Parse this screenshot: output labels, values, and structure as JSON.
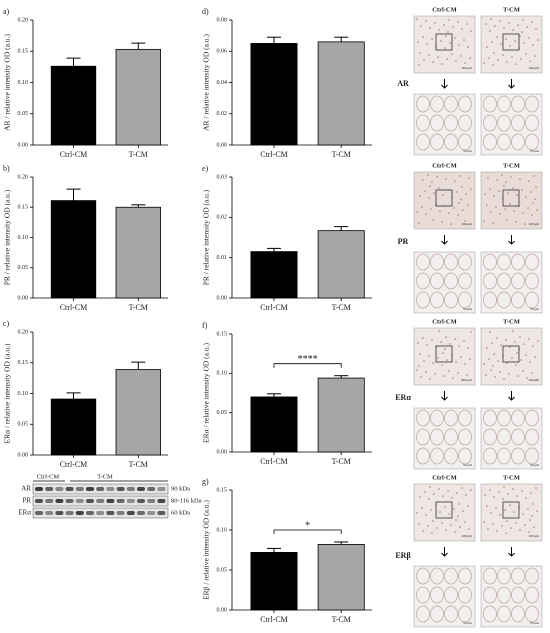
{
  "chart_data": [
    {
      "type": "bar",
      "label": "a)",
      "ylabel": "AR / relative intensity OD (a.u.)",
      "categories": [
        "Ctrl-CM",
        "T-CM"
      ],
      "values": [
        0.126,
        0.153
      ],
      "errors": [
        0.013,
        0.01
      ],
      "colors": [
        "#000000",
        "#a6a6a6"
      ],
      "ylim": [
        0,
        0.2
      ],
      "yticks": [
        {
          "value": 0,
          "label": "0.00"
        },
        {
          "value": 0.05,
          "label": "0.05"
        },
        {
          "value": 0.1,
          "label": "0.10"
        },
        {
          "value": 0.15,
          "label": "0.15"
        },
        {
          "value": 0.2,
          "label": "0.20"
        }
      ]
    },
    {
      "type": "bar",
      "label": "b)",
      "ylabel": "PR / relative intensity OD (a.u.)",
      "categories": [
        "Ctrl-CM",
        "T-CM"
      ],
      "values": [
        0.161,
        0.15
      ],
      "errors": [
        0.019,
        0.004
      ],
      "colors": [
        "#000000",
        "#a6a6a6"
      ],
      "ylim": [
        0,
        0.2
      ],
      "yticks": [
        {
          "value": 0,
          "label": "0.00"
        },
        {
          "value": 0.05,
          "label": "0.05"
        },
        {
          "value": 0.1,
          "label": "0.10"
        },
        {
          "value": 0.15,
          "label": "0.15"
        },
        {
          "value": 0.2,
          "label": "0.20"
        }
      ]
    },
    {
      "type": "bar",
      "label": "c)",
      "ylabel": "ERα / relative intensity OD (a.u.)",
      "categories": [
        "Ctrl-CM",
        "T-CM"
      ],
      "values": [
        0.091,
        0.139
      ],
      "errors": [
        0.01,
        0.012
      ],
      "colors": [
        "#000000",
        "#a6a6a6"
      ],
      "ylim": [
        0,
        0.2
      ],
      "yticks": [
        {
          "value": 0,
          "label": "0.00"
        },
        {
          "value": 0.05,
          "label": "0.05"
        },
        {
          "value": 0.1,
          "label": "0.10"
        },
        {
          "value": 0.15,
          "label": "0.15"
        },
        {
          "value": 0.2,
          "label": "0.20"
        }
      ]
    },
    {
      "type": "bar",
      "label": "d)",
      "ylabel": "AR / relative intensity OD (a.u.)",
      "categories": [
        "Ctrl-CM",
        "T-CM"
      ],
      "values": [
        0.065,
        0.066
      ],
      "errors": [
        0.004,
        0.003
      ],
      "colors": [
        "#000000",
        "#a6a6a6"
      ],
      "ylim": [
        0,
        0.08
      ],
      "yticks": [
        {
          "value": 0,
          "label": "0.00"
        },
        {
          "value": 0.02,
          "label": "0.02"
        },
        {
          "value": 0.04,
          "label": "0.04"
        },
        {
          "value": 0.06,
          "label": "0.06"
        },
        {
          "value": 0.08,
          "label": "0.08"
        }
      ]
    },
    {
      "type": "bar",
      "label": "e)",
      "ylabel": "PR / relative intensity OD (a.u.)",
      "categories": [
        "Ctrl-CM",
        "T-CM"
      ],
      "values": [
        0.0115,
        0.0167
      ],
      "errors": [
        0.0008,
        0.001
      ],
      "colors": [
        "#000000",
        "#a6a6a6"
      ],
      "ylim": [
        0,
        0.03
      ],
      "yticks": [
        {
          "value": 0,
          "label": "0.00"
        },
        {
          "value": 0.01,
          "label": "0.01"
        },
        {
          "value": 0.02,
          "label": "0.02"
        },
        {
          "value": 0.03,
          "label": "0.03"
        }
      ]
    },
    {
      "type": "bar",
      "label": "f)",
      "ylabel": "ERα / relative intensity OD (a.u.)",
      "categories": [
        "Ctrl-CM",
        "T-CM"
      ],
      "values": [
        0.07,
        0.094
      ],
      "errors": [
        0.004,
        0.003
      ],
      "colors": [
        "#000000",
        "#a6a6a6"
      ],
      "ylim": [
        0,
        0.15
      ],
      "yticks": [
        {
          "value": 0,
          "label": "0.00"
        },
        {
          "value": 0.05,
          "label": "0.05"
        },
        {
          "value": 0.1,
          "label": "0.10"
        },
        {
          "value": 0.15,
          "label": "0.15"
        }
      ],
      "significance": "****"
    },
    {
      "type": "bar",
      "label": "g)",
      "ylabel": "ERβ / relative intensity OD (a.u.)",
      "categories": [
        "Ctrl-CM",
        "T-CM"
      ],
      "values": [
        0.072,
        0.082
      ],
      "errors": [
        0.005,
        0.003
      ],
      "colors": [
        "#000000",
        "#a6a6a6"
      ],
      "ylim": [
        0,
        0.15
      ],
      "yticks": [
        {
          "value": 0,
          "label": "0.00"
        },
        {
          "value": 0.05,
          "label": "0.05"
        },
        {
          "value": 0.1,
          "label": "0.10"
        },
        {
          "value": 0.15,
          "label": "0.15"
        }
      ],
      "significance": "*"
    }
  ],
  "blot": {
    "groups": [
      "Ctrl-CM",
      "T-CM"
    ],
    "rows": [
      "AR",
      "PR",
      "ERα"
    ],
    "sizes": [
      "90 kDa",
      "80-116 kDa",
      "60 kDa"
    ]
  },
  "micrographs": {
    "columns": [
      "Ctrl-CM",
      "T-CM"
    ],
    "rows": [
      "AR",
      "PR",
      "ERα",
      "ERβ"
    ],
    "scales": [
      "100 μm",
      "50 μm"
    ]
  }
}
